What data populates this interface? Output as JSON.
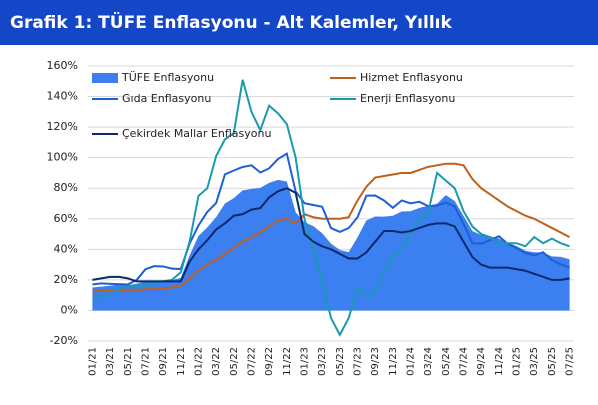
{
  "chart_data": {
    "type": "line",
    "title": "Grafik 1: TÜFE Enflasyonu - Alt Kalemler, Yıllık",
    "categories": [
      "01/21",
      null,
      "03/21",
      null,
      "05/21",
      null,
      "07/21",
      null,
      "09/21",
      null,
      "11/21",
      null,
      "01/22",
      null,
      "03/22",
      null,
      "05/22",
      null,
      "07/22",
      null,
      "09/22",
      null,
      "11/22",
      null,
      "01/23",
      null,
      "03/23",
      null,
      "05/23",
      null,
      "07/23",
      null,
      "09/23",
      null,
      "11/23",
      null,
      "01/24",
      null,
      "03/24",
      null,
      "05/24",
      null,
      "07/24",
      null,
      "09/24",
      null,
      "11/24",
      null,
      "01/25",
      null,
      "03/25",
      null,
      "05/25",
      null,
      "07/25"
    ],
    "series": [
      {
        "name": "TÜFE Enflasyonu",
        "color": "#3c7ff0",
        "style": "area",
        "values": [
          15,
          15.6,
          16.2,
          17.1,
          16.6,
          17.5,
          19,
          19.3,
          19.6,
          19.9,
          21.3,
          36.1,
          48.7,
          54.4,
          61.1,
          70,
          73.5,
          78.6,
          79.6,
          80.2,
          83.5,
          85.5,
          84.4,
          64.3,
          57.7,
          55.2,
          50.5,
          43.7,
          39.6,
          38.2,
          47.8,
          58.9,
          61.5,
          61.4,
          62,
          64.8,
          64.9,
          67.1,
          68.5,
          69.8,
          75.5,
          71.6,
          61.8,
          52,
          49.4,
          48.6,
          47.1,
          44.4,
          42.1,
          39.1,
          38.1,
          37.9,
          35.4,
          35.1,
          33.5
        ]
      },
      {
        "name": "Hizmet Enflasyonu",
        "color": "#c0601a",
        "style": "line",
        "values": [
          12.5,
          12.8,
          13,
          13.2,
          13.3,
          13.5,
          13.8,
          14,
          14.5,
          15,
          16,
          21,
          26,
          30,
          33,
          37,
          41,
          45,
          48,
          51,
          55,
          59,
          60,
          57,
          63,
          61,
          60,
          60,
          60,
          61,
          72,
          81,
          87,
          88,
          89,
          90,
          90,
          92,
          94,
          95,
          96,
          96,
          95,
          86,
          80,
          76,
          72,
          68,
          65,
          62,
          60,
          57,
          54,
          51,
          48
        ]
      },
      {
        "name": "Gıda Enflasyonu",
        "color": "#1f5fd6",
        "style": "line",
        "values": [
          17,
          17.7,
          17.4,
          17.2,
          17,
          19.9,
          27,
          29,
          28.8,
          27.4,
          27.1,
          43.8,
          55.6,
          64.5,
          70.3,
          89.1,
          91.6,
          93.9,
          95,
          90.3,
          93,
          99.1,
          102.6,
          77.9,
          70.2,
          69,
          67.9,
          53.9,
          51.4,
          53.9,
          61,
          75.1,
          75.2,
          72,
          67.2,
          72,
          70.1,
          71.1,
          68.3,
          68.5,
          70.7,
          68.1,
          56.6,
          44,
          43.7,
          46,
          48.6,
          43.6,
          40.9,
          37.5,
          36.1,
          38.1,
          32.9,
          30.2,
          28
        ]
      },
      {
        "name": "Enerji Enflasyonu",
        "color": "#1a9ab0",
        "style": "line",
        "values": [
          8,
          9,
          11,
          14,
          16,
          15,
          16,
          18,
          19,
          20,
          25,
          45,
          75,
          80,
          101,
          112,
          116,
          151,
          130,
          118,
          134,
          129,
          122,
          100,
          60,
          40,
          20,
          -5,
          -16,
          -5,
          15,
          10,
          12,
          25,
          35,
          40,
          50,
          60,
          64,
          90,
          85,
          80,
          65,
          55,
          50,
          48,
          44,
          44,
          44,
          42,
          48,
          44,
          47,
          44,
          42
        ]
      },
      {
        "name": "Çekirdek Mallar Enflasyonu",
        "color": "#0b2a6b",
        "style": "line",
        "values": [
          20,
          21,
          22,
          22,
          21,
          19,
          19,
          19,
          19,
          19,
          19,
          32,
          40,
          46,
          53,
          57,
          62,
          63,
          66,
          67,
          74,
          78,
          80,
          77,
          50,
          45,
          42,
          40,
          37,
          34,
          34,
          38,
          45,
          52,
          52,
          51,
          52,
          54,
          56,
          57,
          57,
          55,
          45,
          35,
          30,
          28,
          28,
          28,
          27,
          26,
          24,
          22,
          20,
          20,
          21
        ]
      }
    ],
    "ylim": [
      -20,
      160
    ],
    "yticks": [
      {
        "value": -20,
        "label": "-20%"
      },
      {
        "value": 0,
        "label": "0%"
      },
      {
        "value": 20,
        "label": "20%"
      },
      {
        "value": 40,
        "label": "40%"
      },
      {
        "value": 60,
        "label": "60%"
      },
      {
        "value": 80,
        "label": "80%"
      },
      {
        "value": 100,
        "label": "100%"
      },
      {
        "value": 120,
        "label": "120%"
      },
      {
        "value": 140,
        "label": "140%"
      },
      {
        "value": 160,
        "label": "160%"
      }
    ],
    "grid": true
  }
}
